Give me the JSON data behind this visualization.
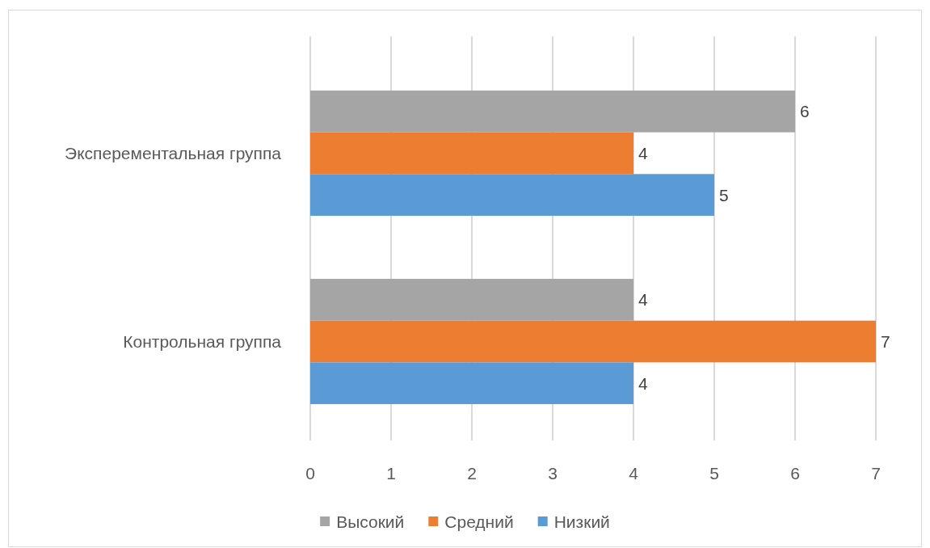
{
  "chart_data": {
    "type": "bar",
    "orientation": "horizontal",
    "categories": [
      "Эксперементальная группа",
      "Контрольная группа"
    ],
    "series": [
      {
        "name": "Высокий",
        "color": "#a5a5a5",
        "values": [
          6,
          4
        ]
      },
      {
        "name": "Средний",
        "color": "#ed7d31",
        "values": [
          4,
          7
        ]
      },
      {
        "name": "Низкий",
        "color": "#5b9bd5",
        "values": [
          5,
          4
        ]
      }
    ],
    "xlim": [
      0,
      7
    ],
    "xticks": [
      0,
      1,
      2,
      3,
      4,
      5,
      6,
      7
    ],
    "grid": "x",
    "legend": "bottom",
    "data_labels": true
  }
}
